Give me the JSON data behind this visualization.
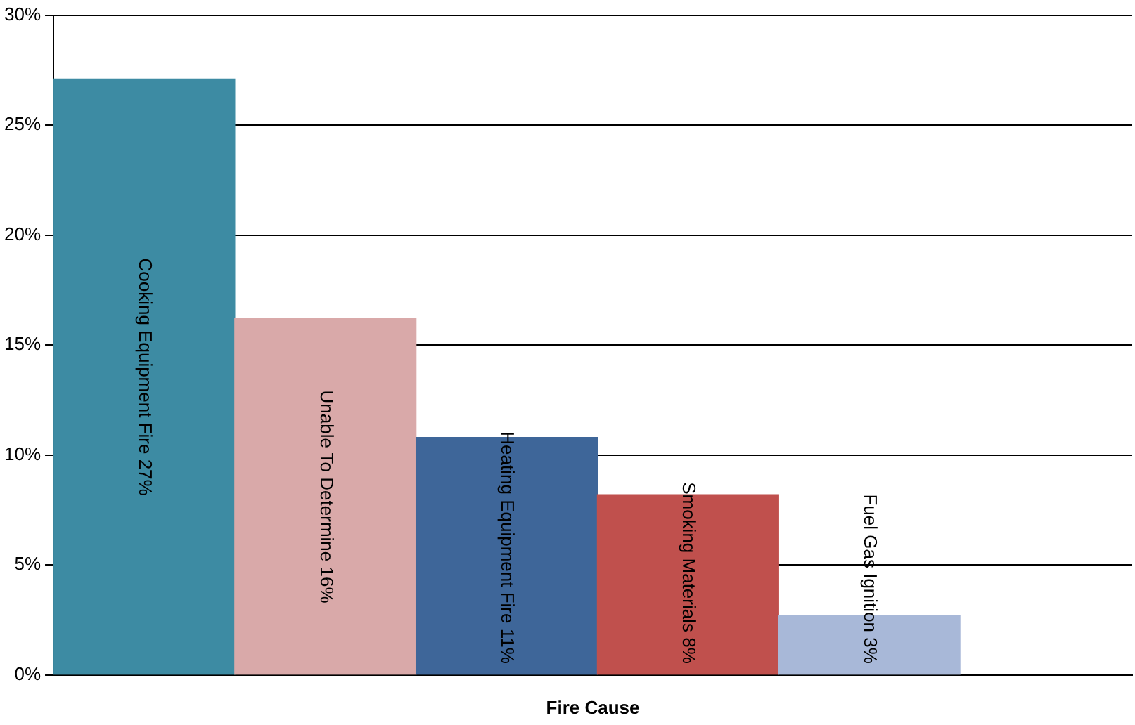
{
  "chart_data": {
    "type": "bar",
    "xlabel": "Fire Cause",
    "categories": [
      "Cooking Equipment Fire",
      "Unable To Determine",
      "Heating Equipment Fire",
      "Smoking Materials",
      "Fuel Gas Ignition"
    ],
    "values": [
      27.1,
      16.2,
      10.8,
      8.2,
      2.7
    ],
    "value_labels": [
      "27%",
      "16%",
      "11%",
      "8%",
      "3%"
    ],
    "colors": [
      "#3d8ba3",
      "#d9a9a9",
      "#3e6699",
      "#c0504d",
      "#a8b8d8"
    ],
    "ylim": [
      0,
      30
    ],
    "yticks": [
      {
        "value": 0,
        "label": "0%"
      },
      {
        "value": 5,
        "label": "5%"
      },
      {
        "value": 10,
        "label": "10%"
      },
      {
        "value": 15,
        "label": "15%"
      },
      {
        "value": 20,
        "label": "20%"
      },
      {
        "value": 25,
        "label": "25%"
      },
      {
        "value": 30,
        "label": "30%"
      }
    ],
    "grid": "y",
    "legend": false
  }
}
